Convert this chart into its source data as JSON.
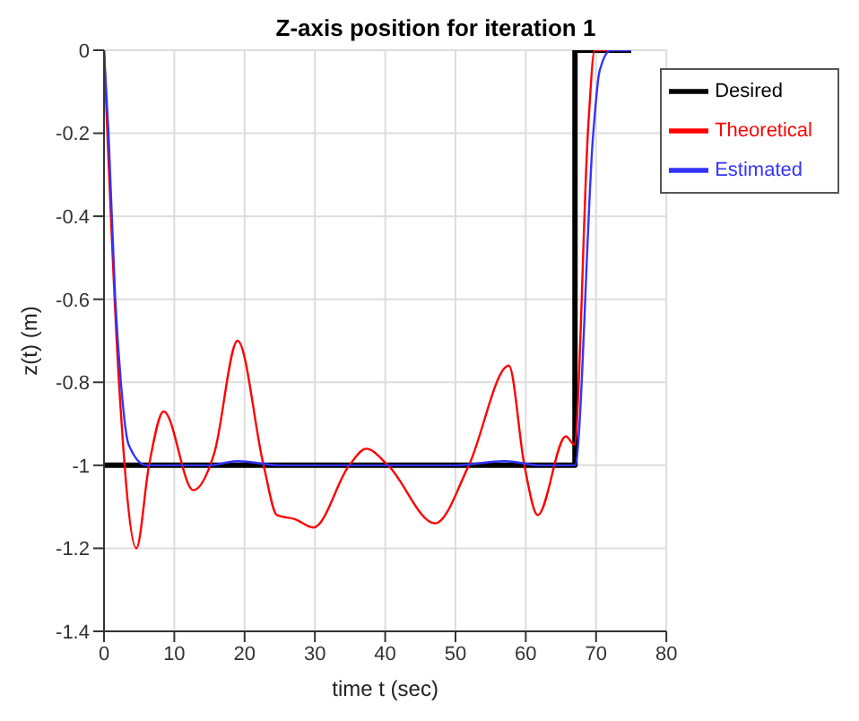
{
  "chart_data": {
    "type": "line",
    "title": "Z-axis position for iteration 1",
    "xlabel": "time t (sec)",
    "ylabel": "z(t) (m)",
    "xlim": [
      0,
      80
    ],
    "xticks": [
      0,
      10,
      20,
      30,
      40,
      50,
      60,
      70,
      80
    ],
    "ylim": [
      -1.4,
      0
    ],
    "yticks": [
      -1.4,
      -1.2,
      -1,
      -0.8,
      -0.6,
      -0.4,
      -0.2,
      0
    ],
    "grid": true,
    "legend": "top right",
    "marker": "none",
    "line_style": "solid",
    "series": [
      {
        "name": "Desired",
        "color": "#000000",
        "x": [
          0,
          67,
          67,
          75
        ],
        "values": [
          -1,
          -1,
          0,
          0
        ]
      },
      {
        "name": "Theoretical",
        "color": "#ff0000",
        "x": [
          0,
          2.2,
          4.6,
          6.4,
          8.5,
          12.7,
          15.7,
          19,
          22.7,
          24.6,
          27.2,
          29.8,
          34.9,
          37.3,
          40.4,
          47.1,
          51.9,
          57.6,
          59.8,
          61.7,
          65.7,
          66.9,
          68.9,
          69.8,
          72
        ],
        "values": [
          0,
          -0.82,
          -1.2,
          -1,
          -0.87,
          -1.06,
          -0.97,
          -0.7,
          -1,
          -1.12,
          -1.13,
          -1.15,
          -1,
          -0.96,
          -1,
          -1.14,
          -1,
          -0.76,
          -1,
          -1.12,
          -0.93,
          -0.95,
          -0.18,
          0,
          0
        ]
      },
      {
        "name": "Estimated",
        "color": "#3333ff",
        "x": [
          0,
          0.64,
          1.6,
          2.4,
          3.5,
          6,
          15,
          19,
          25,
          30,
          40,
          50,
          57,
          62,
          67,
          69.6,
          70.5,
          72.1,
          75
        ],
        "values": [
          0,
          -0.2,
          -0.6,
          -0.8,
          -0.95,
          -1,
          -1,
          -0.99,
          -1,
          -1,
          -1,
          -1,
          -0.99,
          -1,
          -1,
          -0.2,
          -0.05,
          0,
          0
        ]
      }
    ]
  }
}
